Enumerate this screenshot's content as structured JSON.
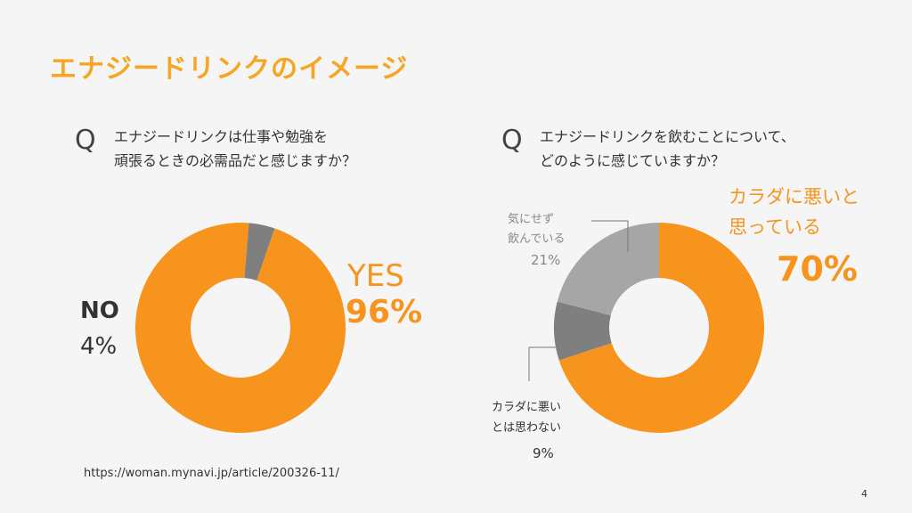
{
  "title": "エナジードリンクのイメージ",
  "colors": {
    "orange": "#f7941d",
    "title_orange": "#f5a623",
    "gray": "#7f7f7f",
    "light_gray": "#a6a6a6",
    "label_gray": "#888888"
  },
  "chart_data": [
    {
      "type": "pie",
      "q_mark": "Q",
      "question": [
        "エナジードリンクは仕事や勉強を",
        "頑張るときの必需品だと感じますか？"
      ],
      "categories": [
        "YES",
        "NO"
      ],
      "values": [
        96,
        4
      ],
      "value_labels": [
        "96%",
        "4%"
      ]
    },
    {
      "type": "pie",
      "q_mark": "Q",
      "question": [
        "エナジードリンクを飲むことについて、",
        "どのように感じていますか？"
      ],
      "categories": [
        "カラダに悪いと思っている",
        "カラダに悪いとは思わない",
        "気にせず飲んでいる"
      ],
      "category_lines": [
        [
          "カラダに悪いと",
          "思っている"
        ],
        [
          "カラダに悪い",
          "とは思わない"
        ],
        [
          "気にせず",
          "飲んでいる"
        ]
      ],
      "values": [
        70,
        9,
        21
      ],
      "value_labels": [
        "70%",
        "9%",
        "21%"
      ]
    }
  ],
  "source": "https://woman.mynavi.jp/article/200326-11/",
  "page_number": "4"
}
